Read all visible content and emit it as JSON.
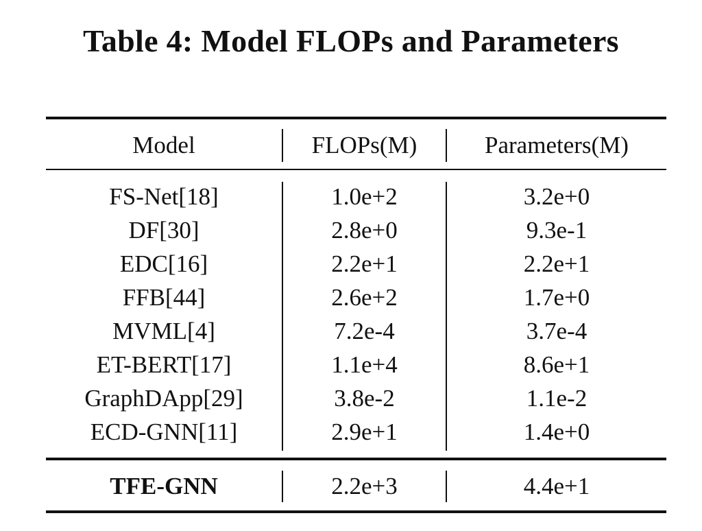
{
  "caption": "Table 4: Model FLOPs and Parameters",
  "table": {
    "headers": [
      "Model",
      "FLOPs(M)",
      "Parameters(M)"
    ],
    "rows": [
      {
        "model": "FS-Net[18]",
        "flops": "1.0e+2",
        "params": "3.2e+0"
      },
      {
        "model": "DF[30]",
        "flops": "2.8e+0",
        "params": "9.3e-1"
      },
      {
        "model": "EDC[16]",
        "flops": "2.2e+1",
        "params": "2.2e+1"
      },
      {
        "model": "FFB[44]",
        "flops": "2.6e+2",
        "params": "1.7e+0"
      },
      {
        "model": "MVML[4]",
        "flops": "7.2e-4",
        "params": "3.7e-4"
      },
      {
        "model": "ET-BERT[17]",
        "flops": "1.1e+4",
        "params": "8.6e+1"
      },
      {
        "model": "GraphDApp[29]",
        "flops": "3.8e-2",
        "params": "1.1e-2"
      },
      {
        "model": "ECD-GNN[11]",
        "flops": "2.9e+1",
        "params": "1.4e+0"
      }
    ],
    "final_row": {
      "model": "TFE-GNN",
      "flops": "2.2e+3",
      "params": "4.4e+1"
    }
  }
}
